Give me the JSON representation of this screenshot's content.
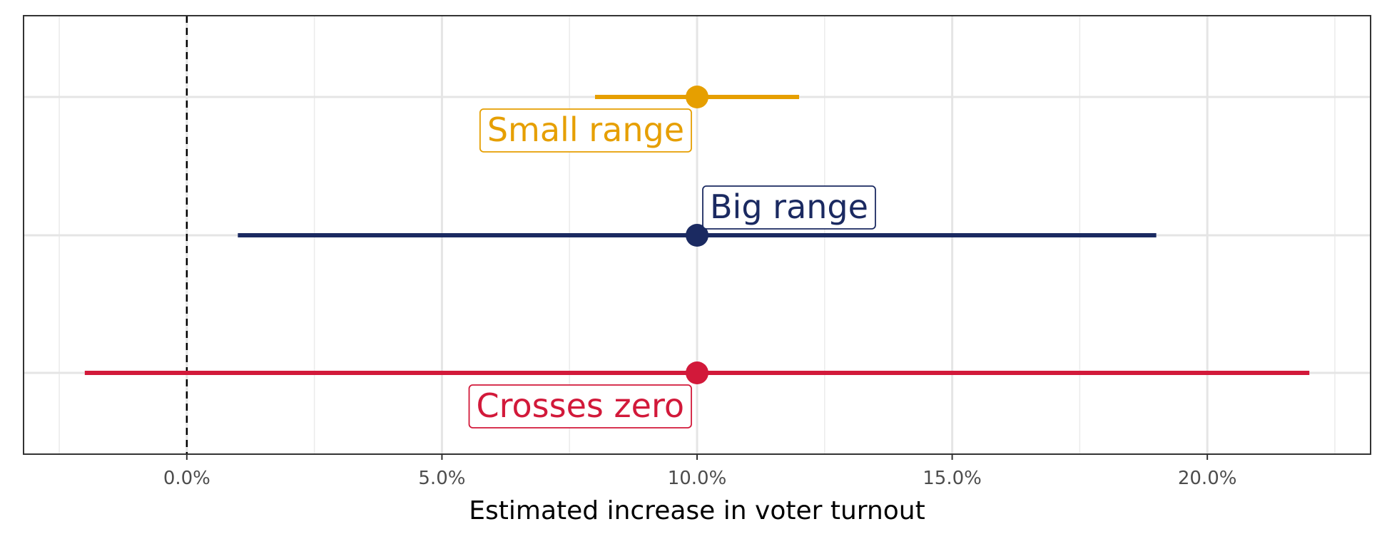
{
  "chart_data": {
    "type": "forest",
    "title": "",
    "xlabel": "Estimated increase in voter turnout",
    "ylabel": "",
    "xlim": [
      -0.032,
      0.232
    ],
    "x_ticks": [
      0.0,
      0.05,
      0.1,
      0.15,
      0.2
    ],
    "x_tick_labels": [
      "0.0%",
      "5.0%",
      "10.0%",
      "15.0%",
      "20.0%"
    ],
    "x_minor_ticks": [
      -0.025,
      0.025,
      0.075,
      0.125,
      0.175,
      0.225
    ],
    "reference_line": 0.0,
    "grid": true,
    "series": [
      {
        "name": "Small range",
        "estimate": 0.1,
        "low": 0.08,
        "high": 0.12,
        "color": "#E69F00",
        "label_side": "below-left"
      },
      {
        "name": "Big range",
        "estimate": 0.1,
        "low": 0.01,
        "high": 0.19,
        "color": "#1B2A61",
        "label_side": "above-right"
      },
      {
        "name": "Crosses zero",
        "estimate": 0.1,
        "low": -0.02,
        "high": 0.22,
        "color": "#D2193A",
        "label_side": "below-left"
      }
    ]
  }
}
